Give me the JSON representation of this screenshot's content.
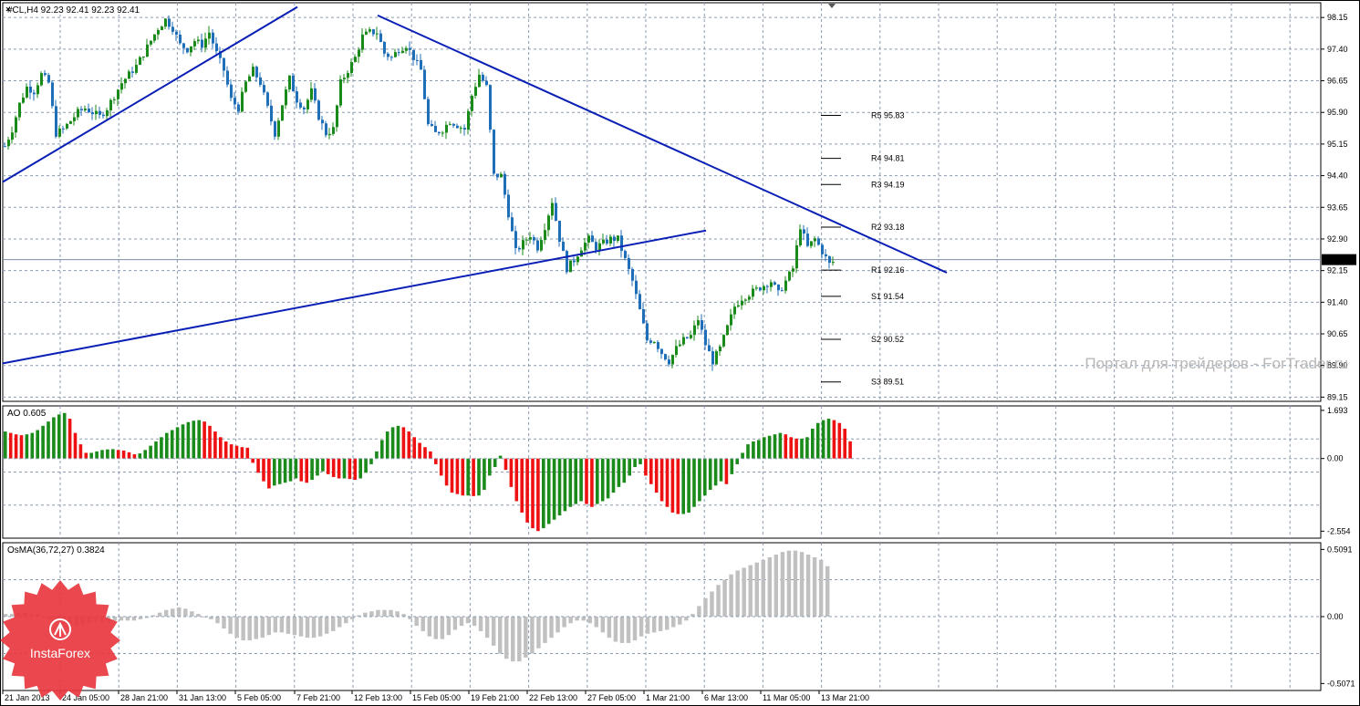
{
  "chart_data": [
    {
      "type": "candlestick",
      "pane": "main",
      "title": "#CL,H4  92.23 92.41 92.23 92.41",
      "current_price": "92.41",
      "ylim": [
        89.05,
        98.5
      ],
      "yticks": [
        "98.15",
        "97.40",
        "96.65",
        "95.90",
        "95.15",
        "94.40",
        "93.65",
        "92.90",
        "92.15",
        "91.40",
        "90.65",
        "89.90",
        "89.15"
      ],
      "xticks": [
        "21 Jan 2013",
        "24 Jan 05:00",
        "28 Jan 21:00",
        "31 Jan 13:00",
        "5 Feb 05:00",
        "7 Feb 21:00",
        "12 Feb 13:00",
        "15 Feb 05:00",
        "19 Feb 21:00",
        "22 Feb 13:00",
        "27 Feb 05:00",
        "1 Mar 21:00",
        "6 Mar 13:00",
        "11 Mar 05:00",
        "13 Mar 21:00"
      ],
      "bullish_color": "#1a8a1a",
      "bearish_color": "#1f6fb8",
      "trendline_color": "#0a1fb5",
      "price_path": [
        [
          0,
          95.1
        ],
        [
          8,
          95.5
        ],
        [
          16,
          96.1
        ],
        [
          24,
          96.5
        ],
        [
          32,
          96.4
        ],
        [
          40,
          96.8
        ],
        [
          48,
          96.6
        ],
        [
          56,
          95.4
        ],
        [
          64,
          95.5
        ],
        [
          72,
          95.7
        ],
        [
          80,
          95.9
        ],
        [
          88,
          96.0
        ],
        [
          96,
          95.9
        ],
        [
          104,
          95.8
        ],
        [
          112,
          96.0
        ],
        [
          120,
          96.3
        ],
        [
          128,
          96.6
        ],
        [
          136,
          96.8
        ],
        [
          144,
          97.0
        ],
        [
          152,
          97.3
        ],
        [
          160,
          97.6
        ],
        [
          168,
          97.9
        ],
        [
          176,
          98.1
        ],
        [
          184,
          97.9
        ],
        [
          192,
          97.5
        ],
        [
          200,
          97.4
        ],
        [
          208,
          97.6
        ],
        [
          216,
          97.5
        ],
        [
          224,
          97.8
        ],
        [
          232,
          97.3
        ],
        [
          240,
          96.9
        ],
        [
          248,
          96.2
        ],
        [
          256,
          96.0
        ],
        [
          264,
          96.6
        ],
        [
          272,
          96.9
        ],
        [
          280,
          96.6
        ],
        [
          288,
          96.0
        ],
        [
          296,
          95.4
        ],
        [
          304,
          96.1
        ],
        [
          312,
          96.7
        ],
        [
          320,
          96.2
        ],
        [
          328,
          96.0
        ],
        [
          336,
          96.4
        ],
        [
          344,
          95.8
        ],
        [
          352,
          95.4
        ],
        [
          360,
          95.5
        ],
        [
          368,
          96.6
        ],
        [
          376,
          96.9
        ],
        [
          384,
          97.2
        ],
        [
          392,
          97.7
        ],
        [
          400,
          97.8
        ],
        [
          408,
          97.8
        ],
        [
          416,
          97.3
        ],
        [
          424,
          97.2
        ],
        [
          432,
          97.4
        ],
        [
          440,
          97.5
        ],
        [
          448,
          97.2
        ],
        [
          456,
          96.9
        ],
        [
          464,
          95.6
        ],
        [
          472,
          95.4
        ],
        [
          480,
          95.5
        ],
        [
          488,
          95.7
        ],
        [
          496,
          95.6
        ],
        [
          504,
          95.5
        ],
        [
          512,
          96.3
        ],
        [
          520,
          96.8
        ],
        [
          528,
          96.5
        ],
        [
          536,
          94.4
        ],
        [
          544,
          94.4
        ],
        [
          552,
          93.5
        ],
        [
          560,
          92.6
        ],
        [
          568,
          92.8
        ],
        [
          576,
          93.0
        ],
        [
          584,
          92.7
        ],
        [
          592,
          93.2
        ],
        [
          600,
          93.8
        ],
        [
          608,
          92.9
        ],
        [
          616,
          92.2
        ],
        [
          624,
          92.4
        ],
        [
          632,
          92.7
        ],
        [
          640,
          92.9
        ],
        [
          648,
          92.7
        ],
        [
          656,
          92.8
        ],
        [
          664,
          92.9
        ],
        [
          672,
          92.9
        ],
        [
          680,
          92.4
        ],
        [
          688,
          91.9
        ],
        [
          696,
          91.2
        ],
        [
          704,
          90.5
        ],
        [
          712,
          90.5
        ],
        [
          720,
          90.2
        ],
        [
          728,
          90.0
        ],
        [
          736,
          90.3
        ],
        [
          744,
          90.5
        ],
        [
          752,
          90.6
        ],
        [
          760,
          91.0
        ],
        [
          768,
          90.4
        ],
        [
          776,
          90.0
        ],
        [
          784,
          90.3
        ],
        [
          792,
          90.8
        ],
        [
          800,
          91.3
        ],
        [
          808,
          91.5
        ],
        [
          816,
          91.6
        ],
        [
          824,
          91.7
        ],
        [
          832,
          91.8
        ],
        [
          840,
          91.9
        ],
        [
          848,
          91.6
        ],
        [
          856,
          91.9
        ],
        [
          864,
          92.2
        ],
        [
          872,
          93.2
        ],
        [
          880,
          92.7
        ],
        [
          888,
          92.9
        ],
        [
          896,
          92.6
        ],
        [
          904,
          92.3
        ],
        [
          912,
          92.41
        ]
      ],
      "trendlines": [
        {
          "from": [
            0,
            94.25
          ],
          "to": [
            323,
            98.4
          ]
        },
        {
          "from": [
            411,
            98.2
          ],
          "to": [
            1035,
            92.1
          ]
        },
        {
          "from": [
            0,
            89.95
          ],
          "to": [
            771,
            93.1
          ]
        }
      ],
      "pivots": [
        {
          "label": "R5 95.83",
          "value": 95.83
        },
        {
          "label": "R4 94.81",
          "value": 94.81
        },
        {
          "label": "R3 94.19",
          "value": 94.19
        },
        {
          "label": "R2 93.18",
          "value": 93.18
        },
        {
          "label": "R1 92.16",
          "value": 92.16
        },
        {
          "label": "S1 91.54",
          "value": 91.54
        },
        {
          "label": "S2 90.52",
          "value": 90.52
        },
        {
          "label": "S3 89.51",
          "value": 89.51
        }
      ],
      "watermark": "Портал для трейдеров - ForTrader.ru"
    },
    {
      "type": "bar",
      "pane": "ao",
      "title": "AO 0.605",
      "ylim": [
        -2.8,
        1.85
      ],
      "yticks": [
        "1.693",
        "0.00",
        "-2.554"
      ],
      "up_color": "#1a8a1a",
      "down_color": "#ee1111",
      "values": [
        0.95,
        0.9,
        0.85,
        0.82,
        0.85,
        0.9,
        1.0,
        1.15,
        1.3,
        1.45,
        1.55,
        1.6,
        1.4,
        0.9,
        0.5,
        0.2,
        0.2,
        0.25,
        0.3,
        0.32,
        0.33,
        0.3,
        0.28,
        0.22,
        0.15,
        0.18,
        0.3,
        0.45,
        0.6,
        0.75,
        0.9,
        1.0,
        1.1,
        1.2,
        1.28,
        1.33,
        1.35,
        1.3,
        1.15,
        0.95,
        0.75,
        0.6,
        0.5,
        0.45,
        0.4,
        0.38,
        -0.15,
        -0.5,
        -0.8,
        -1.05,
        -0.95,
        -0.9,
        -0.85,
        -0.8,
        -0.7,
        -0.8,
        -0.85,
        -0.75,
        -0.6,
        -0.45,
        -0.55,
        -0.65,
        -0.7,
        -0.7,
        -0.72,
        -0.75,
        -0.7,
        -0.5,
        -0.2,
        0.25,
        0.65,
        0.95,
        1.1,
        1.15,
        1.1,
        0.95,
        0.75,
        0.55,
        0.4,
        0.25,
        -0.2,
        -0.6,
        -0.95,
        -1.2,
        -1.25,
        -1.3,
        -1.3,
        -1.32,
        -1.3,
        -1.1,
        -0.6,
        -0.3,
        0.1,
        -0.4,
        -1.0,
        -1.5,
        -1.9,
        -2.25,
        -2.45,
        -2.55,
        -2.45,
        -2.3,
        -2.15,
        -2.0,
        -1.85,
        -1.7,
        -1.6,
        -1.5,
        -1.6,
        -1.7,
        -1.6,
        -1.5,
        -1.4,
        -1.2,
        -1.0,
        -0.85,
        -0.6,
        -0.3,
        -0.2,
        -0.6,
        -0.9,
        -1.2,
        -1.5,
        -1.7,
        -1.9,
        -1.95,
        -1.95,
        -1.9,
        -1.7,
        -1.5,
        -1.3,
        -1.1,
        -0.95,
        -0.8,
        -0.9,
        -0.55,
        -0.2,
        0.2,
        0.5,
        0.6,
        0.65,
        0.75,
        0.8,
        0.85,
        0.9,
        0.85,
        0.75,
        0.7,
        0.7,
        0.75,
        1.05,
        1.25,
        1.35,
        1.4,
        1.35,
        1.25,
        1.05,
        0.605
      ]
    },
    {
      "type": "bar",
      "pane": "osma",
      "title": "OsMA(36,72,27) 0.3824",
      "ylim": [
        -0.56,
        0.56
      ],
      "yticks": [
        "0.5091",
        "0.00",
        "-0.5071"
      ],
      "bar_color": "#c0c0c0",
      "values": [
        0.02,
        0.02,
        0.03,
        0.03,
        0.02,
        0.02,
        0.0,
        -0.02,
        -0.04,
        -0.06,
        -0.07,
        -0.07,
        -0.06,
        -0.05,
        -0.04,
        -0.04,
        -0.04,
        -0.03,
        -0.03,
        -0.03,
        -0.03,
        -0.02,
        -0.01,
        0.01,
        0.03,
        0.05,
        0.06,
        0.07,
        0.06,
        0.04,
        0.02,
        0.0,
        -0.02,
        -0.05,
        -0.09,
        -0.13,
        -0.16,
        -0.18,
        -0.18,
        -0.17,
        -0.16,
        -0.14,
        -0.12,
        -0.12,
        -0.13,
        -0.14,
        -0.15,
        -0.16,
        -0.16,
        -0.15,
        -0.13,
        -0.11,
        -0.08,
        -0.05,
        -0.02,
        0.01,
        0.03,
        0.04,
        0.05,
        0.05,
        0.05,
        0.04,
        0.02,
        -0.02,
        -0.07,
        -0.11,
        -0.15,
        -0.17,
        -0.17,
        -0.14,
        -0.1,
        -0.07,
        -0.05,
        -0.07,
        -0.11,
        -0.16,
        -0.22,
        -0.28,
        -0.32,
        -0.34,
        -0.34,
        -0.31,
        -0.28,
        -0.24,
        -0.2,
        -0.16,
        -0.12,
        -0.08,
        -0.05,
        -0.03,
        -0.03,
        -0.05,
        -0.08,
        -0.12,
        -0.16,
        -0.19,
        -0.2,
        -0.2,
        -0.18,
        -0.15,
        -0.13,
        -0.12,
        -0.11,
        -0.1,
        -0.08,
        -0.06,
        -0.03,
        0.02,
        0.08,
        0.14,
        0.19,
        0.24,
        0.28,
        0.32,
        0.35,
        0.37,
        0.39,
        0.41,
        0.43,
        0.45,
        0.47,
        0.49,
        0.5,
        0.5,
        0.49,
        0.47,
        0.45,
        0.43,
        0.3824
      ]
    }
  ],
  "branding": {
    "logo_text": "InstaForex"
  }
}
